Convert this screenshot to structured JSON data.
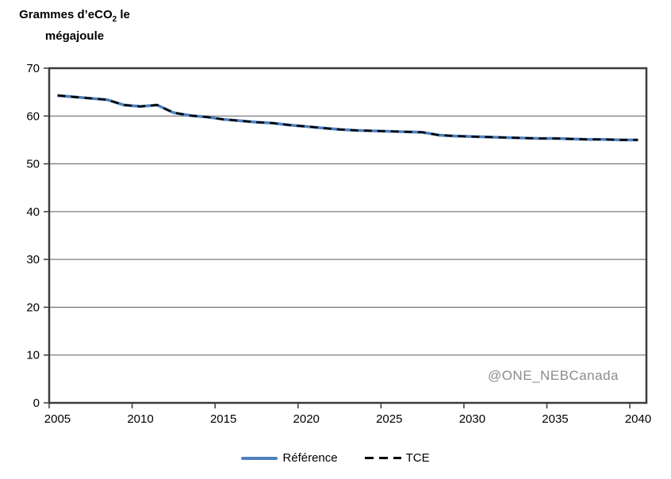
{
  "figure": {
    "title": {
      "line1_pre": "Grammes d’eCO",
      "line1_sub": "2",
      "line1_post": " le",
      "line2": "mégajoule"
    },
    "watermark": "@ONE_NEBCanada"
  },
  "chart_data": {
    "type": "line",
    "title": "Grammes d'eCO2 le mégajoule",
    "xlabel": "",
    "ylabel": "Grammes d'eCO2 le mégajoule",
    "x": [
      2005,
      2006,
      2007,
      2008,
      2009,
      2010,
      2011,
      2012,
      2013,
      2014,
      2015,
      2016,
      2017,
      2018,
      2019,
      2020,
      2021,
      2022,
      2023,
      2024,
      2025,
      2026,
      2027,
      2028,
      2029,
      2030,
      2031,
      2032,
      2033,
      2034,
      2035,
      2036,
      2037,
      2038,
      2039,
      2040
    ],
    "x_tick_labels": [
      "2005",
      "2010",
      "2015",
      "2020",
      "2025",
      "2030",
      "2035",
      "2040"
    ],
    "ylim": [
      0,
      70
    ],
    "ytick_step": 10,
    "grid": "horizontal",
    "legend_position": "bottom",
    "series": [
      {
        "name": "Référence",
        "color": "#4F81BD",
        "line_style": "solid",
        "values": [
          64.3,
          64.0,
          63.7,
          63.4,
          62.3,
          62.0,
          62.3,
          60.7,
          60.1,
          59.8,
          59.3,
          59.0,
          58.7,
          58.5,
          58.1,
          57.8,
          57.5,
          57.2,
          57.0,
          56.9,
          56.8,
          56.7,
          56.6,
          56.0,
          55.8,
          55.7,
          55.6,
          55.5,
          55.4,
          55.3,
          55.3,
          55.2,
          55.1,
          55.1,
          55.0,
          55.0
        ]
      },
      {
        "name": "TCE",
        "color": "#000000",
        "line_style": "dashed",
        "values": [
          64.3,
          64.0,
          63.7,
          63.4,
          62.3,
          62.0,
          62.3,
          60.7,
          60.1,
          59.8,
          59.3,
          59.0,
          58.7,
          58.5,
          58.1,
          57.8,
          57.5,
          57.2,
          57.0,
          56.9,
          56.8,
          56.7,
          56.6,
          56.0,
          55.8,
          55.7,
          55.6,
          55.5,
          55.4,
          55.3,
          55.3,
          55.2,
          55.1,
          55.1,
          55.0,
          55.0
        ]
      }
    ]
  }
}
